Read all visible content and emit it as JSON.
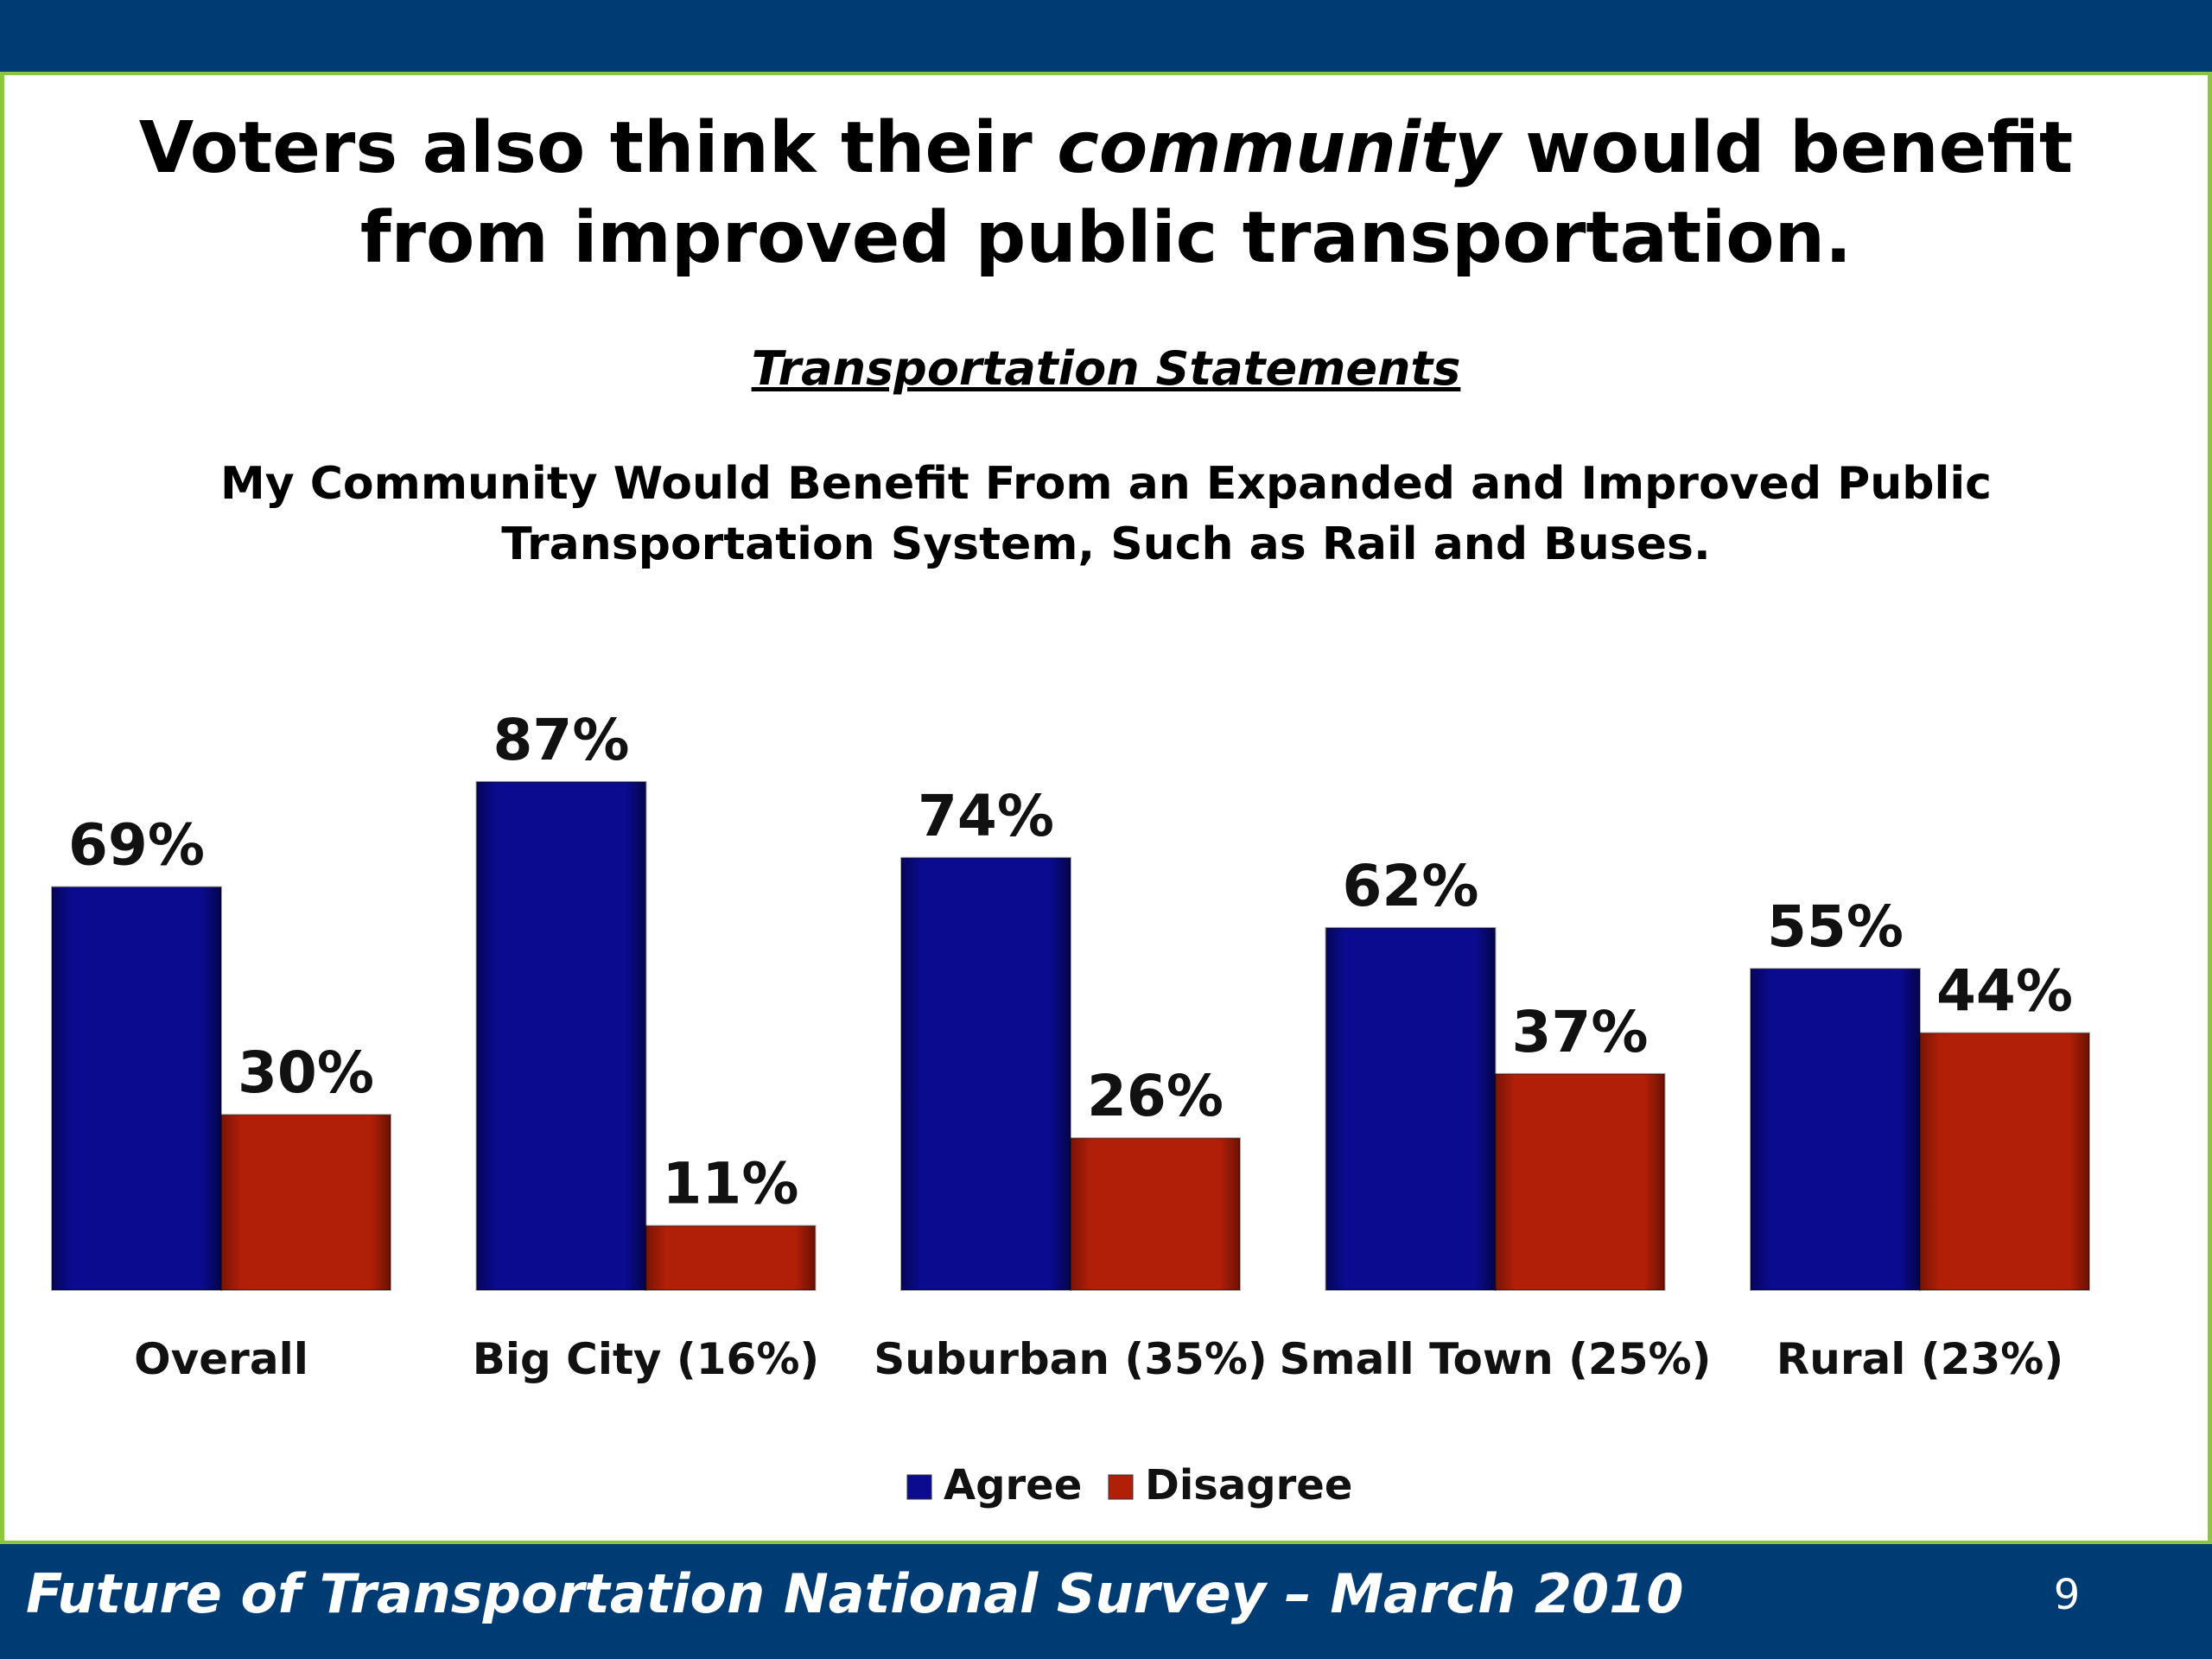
{
  "slide": {
    "title_part1": "Voters also think their ",
    "title_emphasis": "community",
    "title_part2": " would benefit from improved public transportation.",
    "subtitle": "Transportation Statements",
    "question": "My Community Would Benefit From an Expanded and Improved Public Transportation System, Such as Rail and Buses.",
    "footer": "Future of Transportation National Survey – March 2010",
    "page_number": "9"
  },
  "colors": {
    "band": "#003c74",
    "frame": "#8cc63f",
    "agree": "#0b0b8f",
    "disagree": "#b21f08"
  },
  "chart_data": {
    "type": "bar",
    "categories": [
      "Overall",
      "Big City (16%)",
      "Suburban (35%)",
      "Small Town (25%)",
      "Rural (23%)"
    ],
    "series": [
      {
        "name": "Agree",
        "values": [
          69,
          87,
          74,
          62,
          55
        ],
        "labels": [
          "69%",
          "87%",
          "74%",
          "62%",
          "55%"
        ]
      },
      {
        "name": "Disagree",
        "values": [
          30,
          11,
          26,
          37,
          44
        ],
        "labels": [
          "30%",
          "11%",
          "26%",
          "37%",
          "44%"
        ]
      }
    ],
    "ylim": [
      0,
      100
    ],
    "grid": false,
    "legend_position": "bottom-center"
  }
}
